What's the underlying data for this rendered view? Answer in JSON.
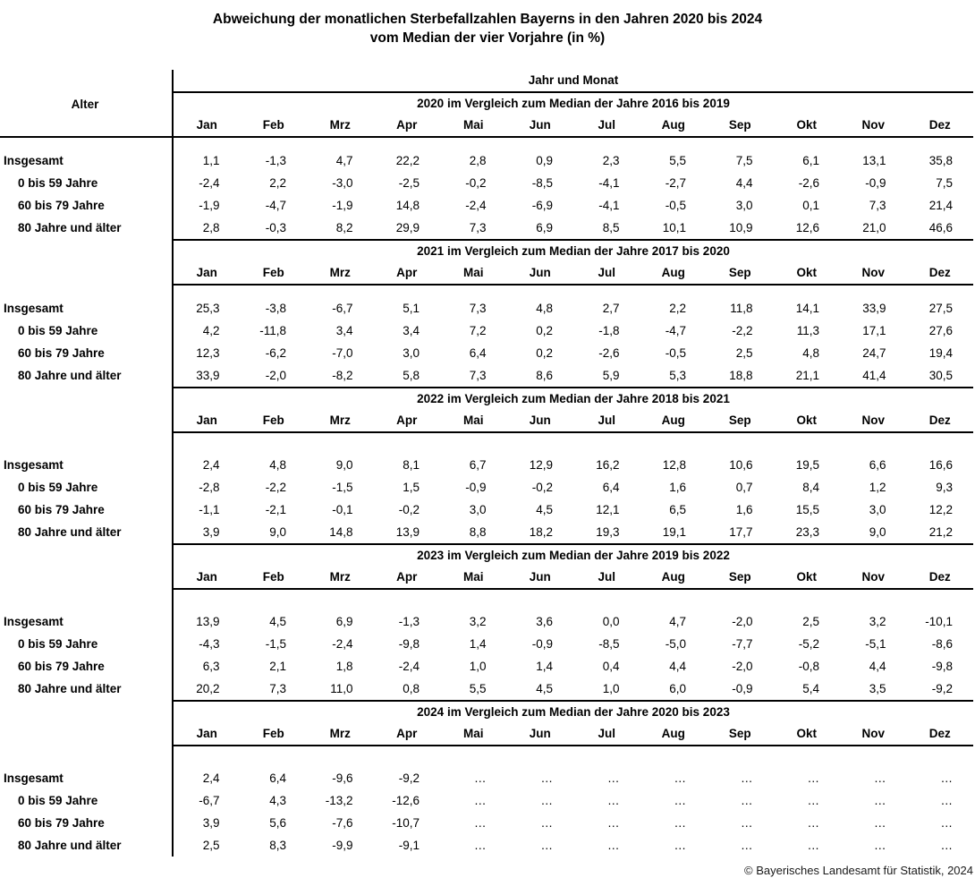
{
  "title": {
    "line1": "Abweichung der monatlichen Sterbefallzahlen Bayerns in den Jahren 2020 bis 2024",
    "line2": "vom Median der vier Vorjahre (in %)"
  },
  "table": {
    "alter_header": "Alter",
    "jahr_und_monat_header": "Jahr und Monat",
    "months": [
      "Jan",
      "Feb",
      "Mrz",
      "Apr",
      "Mai",
      "Jun",
      "Jul",
      "Aug",
      "Sep",
      "Okt",
      "Nov",
      "Dez"
    ],
    "row_labels": [
      "Insgesamt",
      "0 bis 59 Jahre",
      "60 bis 79 Jahre",
      "80 Jahre und älter"
    ],
    "sections": [
      {
        "year": "2020",
        "header": "2020 im Vergleich zum Median der Jahre 2016 bis 2019",
        "rows": [
          [
            "1,1",
            "-1,3",
            "4,7",
            "22,2",
            "2,8",
            "0,9",
            "2,3",
            "5,5",
            "7,5",
            "6,1",
            "13,1",
            "35,8"
          ],
          [
            "-2,4",
            "2,2",
            "-3,0",
            "-2,5",
            "-0,2",
            "-8,5",
            "-4,1",
            "-2,7",
            "4,4",
            "-2,6",
            "-0,9",
            "7,5"
          ],
          [
            "-1,9",
            "-4,7",
            "-1,9",
            "14,8",
            "-2,4",
            "-6,9",
            "-4,1",
            "-0,5",
            "3,0",
            "0,1",
            "7,3",
            "21,4"
          ],
          [
            "2,8",
            "-0,3",
            "8,2",
            "29,9",
            "7,3",
            "6,9",
            "8,5",
            "10,1",
            "10,9",
            "12,6",
            "21,0",
            "46,6"
          ]
        ]
      },
      {
        "year": "2021",
        "header": "2021 im Vergleich zum Median der Jahre 2017 bis 2020",
        "rows": [
          [
            "25,3",
            "-3,8",
            "-6,7",
            "5,1",
            "7,3",
            "4,8",
            "2,7",
            "2,2",
            "11,8",
            "14,1",
            "33,9",
            "27,5"
          ],
          [
            "4,2",
            "-11,8",
            "3,4",
            "3,4",
            "7,2",
            "0,2",
            "-1,8",
            "-4,7",
            "-2,2",
            "11,3",
            "17,1",
            "27,6"
          ],
          [
            "12,3",
            "-6,2",
            "-7,0",
            "3,0",
            "6,4",
            "0,2",
            "-2,6",
            "-0,5",
            "2,5",
            "4,8",
            "24,7",
            "19,4"
          ],
          [
            "33,9",
            "-2,0",
            "-8,2",
            "5,8",
            "7,3",
            "8,6",
            "5,9",
            "5,3",
            "18,8",
            "21,1",
            "41,4",
            "30,5"
          ]
        ]
      },
      {
        "year": "2022",
        "header": "2022 im Vergleich zum Median der Jahre 2018 bis 2021",
        "rows": [
          [
            "2,4",
            "4,8",
            "9,0",
            "8,1",
            "6,7",
            "12,9",
            "16,2",
            "12,8",
            "10,6",
            "19,5",
            "6,6",
            "16,6"
          ],
          [
            "-2,8",
            "-2,2",
            "-1,5",
            "1,5",
            "-0,9",
            "-0,2",
            "6,4",
            "1,6",
            "0,7",
            "8,4",
            "1,2",
            "9,3"
          ],
          [
            "-1,1",
            "-2,1",
            "-0,1",
            "-0,2",
            "3,0",
            "4,5",
            "12,1",
            "6,5",
            "1,6",
            "15,5",
            "3,0",
            "12,2"
          ],
          [
            "3,9",
            "9,0",
            "14,8",
            "13,9",
            "8,8",
            "18,2",
            "19,3",
            "19,1",
            "17,7",
            "23,3",
            "9,0",
            "21,2"
          ]
        ]
      },
      {
        "year": "2023",
        "header": "2023 im Vergleich zum Median der Jahre 2019 bis 2022",
        "rows": [
          [
            "13,9",
            "4,5",
            "6,9",
            "-1,3",
            "3,2",
            "3,6",
            "0,0",
            "4,7",
            "-2,0",
            "2,5",
            "3,2",
            "-10,1"
          ],
          [
            "-4,3",
            "-1,5",
            "-2,4",
            "-9,8",
            "1,4",
            "-0,9",
            "-8,5",
            "-5,0",
            "-7,7",
            "-5,2",
            "-5,1",
            "-8,6"
          ],
          [
            "6,3",
            "2,1",
            "1,8",
            "-2,4",
            "1,0",
            "1,4",
            "0,4",
            "4,4",
            "-2,0",
            "-0,8",
            "4,4",
            "-9,8"
          ],
          [
            "20,2",
            "7,3",
            "11,0",
            "0,8",
            "5,5",
            "4,5",
            "1,0",
            "6,0",
            "-0,9",
            "5,4",
            "3,5",
            "-9,2"
          ]
        ]
      },
      {
        "year": "2024",
        "header": "2024 im Vergleich zum Median der Jahre 2020 bis 2023",
        "rows": [
          [
            "2,4",
            "6,4",
            "-9,6",
            "-9,2",
            "…",
            "…",
            "…",
            "…",
            "…",
            "…",
            "…",
            "…"
          ],
          [
            "-6,7",
            "4,3",
            "-13,2",
            "-12,6",
            "…",
            "…",
            "…",
            "…",
            "…",
            "…",
            "…",
            "…"
          ],
          [
            "3,9",
            "5,6",
            "-7,6",
            "-10,7",
            "…",
            "…",
            "…",
            "…",
            "…",
            "…",
            "…",
            "…"
          ],
          [
            "2,5",
            "8,3",
            "-9,9",
            "-9,1",
            "…",
            "…",
            "…",
            "…",
            "…",
            "…",
            "…",
            "…"
          ]
        ]
      }
    ]
  },
  "footer": {
    "copyright": "© Bayerisches Landesamt für Statistik, 2024"
  }
}
